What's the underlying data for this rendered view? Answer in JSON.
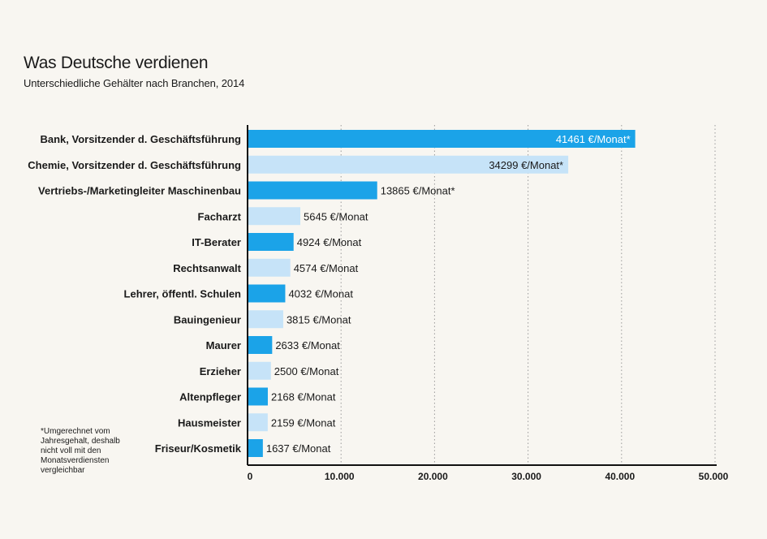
{
  "colors": {
    "dark_bar": "#1ba3e8",
    "light_bar": "#c6e3f8",
    "background": "#f8f6f1"
  },
  "footnote": "*Umgerechnet vom Jahresgehalt, deshalb nicht voll mit den Monatsverdiensten vergleichbar",
  "chart_data": {
    "type": "bar",
    "orientation": "horizontal",
    "title": "Was Deutsche verdienen",
    "subtitle": "Unterschiedliche Gehälter nach Branchen, 2014",
    "categories": [
      "Bank, Vorsitzender d. Geschäftsführung",
      "Chemie, Vorsitzender d. Geschäftsführung",
      "Vertriebs-/Marketingleiter Maschinenbau",
      "Facharzt",
      "IT-Berater",
      "Rechtsanwalt",
      "Lehrer, öffentl. Schulen",
      "Bauingenieur",
      "Maurer",
      "Erzieher",
      "Altenpfleger",
      "Hausmeister",
      "Friseur/Kosmetik"
    ],
    "values": [
      41461,
      34299,
      13865,
      5645,
      4924,
      4574,
      4032,
      3815,
      2633,
      2500,
      2168,
      2159,
      1637
    ],
    "data_labels": [
      "41461 €/Monat*",
      "34299 €/Monat*",
      "13865 €/Monat*",
      "5645 €/Monat",
      "4924 €/Monat",
      "4574 €/Monat",
      "4032 €/Monat",
      "3815 €/Monat",
      "2633 €/Monat",
      "2500 €/Monat",
      "2168 €/Monat",
      "2159 €/Monat",
      "1637 €/Monat"
    ],
    "xlim": [
      0,
      50000
    ],
    "xticks": [
      0,
      10000,
      20000,
      30000,
      40000,
      50000
    ],
    "xtick_labels": [
      "0",
      "10.000",
      "20.000",
      "30.000",
      "40.000",
      "50.000"
    ],
    "xlabel": "",
    "ylabel": "",
    "grid": "vertical dotted",
    "legend": "none"
  }
}
